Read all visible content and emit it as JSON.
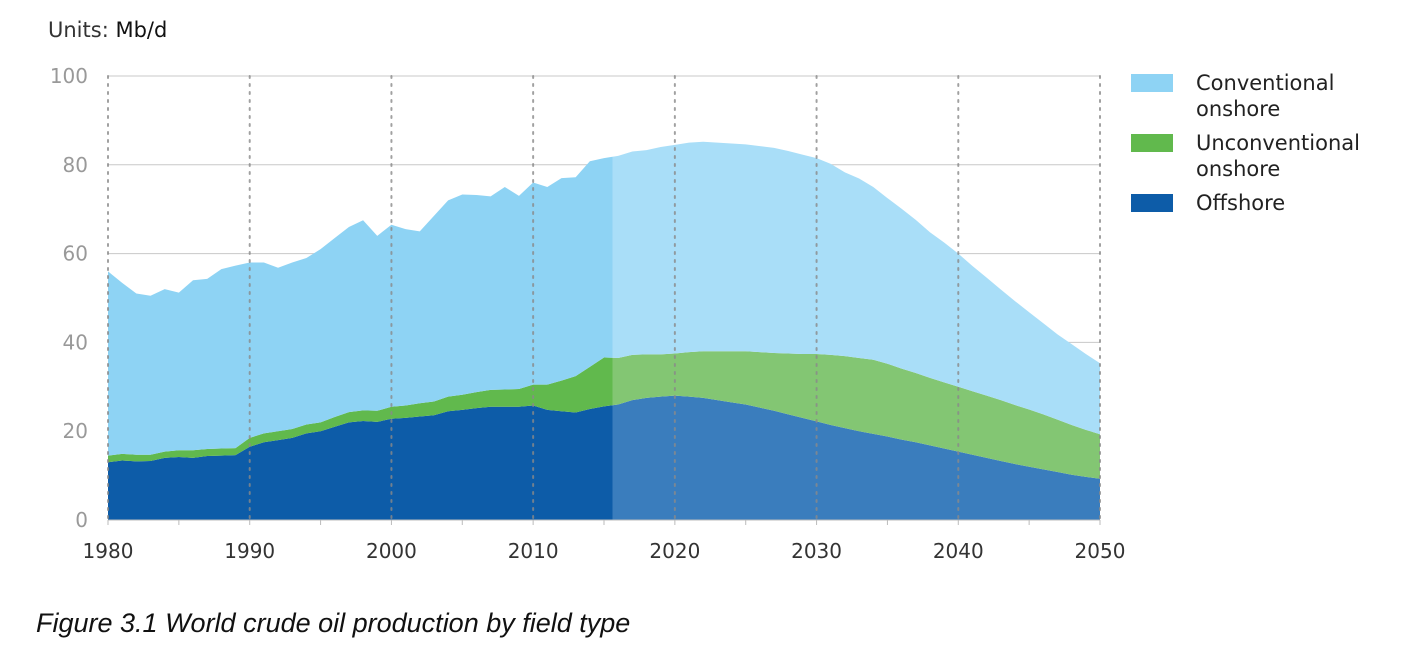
{
  "units_label": "Units:",
  "units_value": "Mb/d",
  "caption": "Figure 3.1 World crude oil production by field type",
  "colors": {
    "conventional": "#8ed3f4",
    "conventional_projected": "#a9def8",
    "unconventional": "#61b94d",
    "unconventional_projected": "#83c673",
    "offshore": "#0d5ca8",
    "offshore_projected": "#3a7dbd",
    "grid": "#c8c8c8",
    "axis_text": "#999999"
  },
  "chart_data": {
    "type": "area",
    "stacked": true,
    "title": "",
    "xlabel": "",
    "ylabel": "",
    "xlim": [
      1980,
      2050
    ],
    "ylim": [
      0,
      100
    ],
    "x_ticks": [
      1980,
      1990,
      2000,
      2010,
      2020,
      2030,
      2040,
      2050
    ],
    "y_ticks": [
      0,
      20,
      40,
      60,
      80,
      100
    ],
    "legend_position": "right",
    "projection_start": 2015.6,
    "x": [
      1980,
      1981,
      1982,
      1983,
      1984,
      1985,
      1986,
      1987,
      1988,
      1989,
      1990,
      1991,
      1992,
      1993,
      1994,
      1995,
      1996,
      1997,
      1998,
      1999,
      2000,
      2001,
      2002,
      2003,
      2004,
      2005,
      2006,
      2007,
      2008,
      2009,
      2010,
      2011,
      2012,
      2013,
      2014,
      2015,
      2016,
      2017,
      2018,
      2019,
      2020,
      2021,
      2022,
      2023,
      2024,
      2025,
      2026,
      2027,
      2028,
      2029,
      2030,
      2031,
      2032,
      2033,
      2034,
      2035,
      2036,
      2037,
      2038,
      2039,
      2040,
      2041,
      2042,
      2043,
      2044,
      2045,
      2046,
      2047,
      2048,
      2049,
      2050
    ],
    "series": [
      {
        "name": "Offshore",
        "key": "offshore",
        "values": [
          13,
          13.4,
          13.2,
          13.3,
          14,
          14.2,
          14,
          14.4,
          14.5,
          14.6,
          16.5,
          17.5,
          18,
          18.5,
          19.5,
          20,
          21,
          22,
          22.3,
          22.1,
          22.8,
          23,
          23.3,
          23.6,
          24.5,
          24.8,
          25.2,
          25.5,
          25.5,
          25.5,
          25.8,
          24.8,
          24.5,
          24.2,
          25,
          25.6,
          26,
          27,
          27.5,
          27.8,
          28,
          27.8,
          27.5,
          27,
          26.5,
          26,
          25.3,
          24.6,
          23.8,
          23,
          22.2,
          21.4,
          20.7,
          20,
          19.4,
          18.8,
          18.1,
          17.5,
          16.8,
          16.1,
          15.4,
          14.7,
          14,
          13.3,
          12.6,
          12,
          11.4,
          10.8,
          10.2,
          9.7,
          9.3
        ]
      },
      {
        "name": "Unconventional onshore",
        "key": "unconventional",
        "values": [
          1.5,
          1.5,
          1.5,
          1.4,
          1.4,
          1.5,
          1.7,
          1.6,
          1.6,
          1.6,
          2,
          2,
          2,
          2,
          2,
          2,
          2.2,
          2.3,
          2.4,
          2.5,
          2.7,
          2.8,
          3,
          3.1,
          3.3,
          3.4,
          3.6,
          3.8,
          3.9,
          4,
          4.7,
          5.7,
          6.9,
          8.2,
          9.5,
          11,
          10.5,
          10.2,
          9.8,
          9.5,
          9.5,
          10,
          10.5,
          11,
          11.5,
          12,
          12.5,
          13,
          13.7,
          14.4,
          15.2,
          15.8,
          16.2,
          16.5,
          16.7,
          16.4,
          16,
          15.6,
          15.2,
          14.9,
          14.6,
          14.3,
          14,
          13.7,
          13.3,
          12.9,
          12.4,
          11.8,
          11.2,
          10.6,
          10
        ]
      },
      {
        "name": "Conventional onshore",
        "key": "conventional",
        "values": [
          41.5,
          38.5,
          36.3,
          35.8,
          36.6,
          35.5,
          38.3,
          38.3,
          40.4,
          41.1,
          39.5,
          38.5,
          36.8,
          37.5,
          37.5,
          39,
          40.3,
          41.7,
          42.8,
          39.4,
          41,
          39.7,
          38.7,
          41.8,
          44.2,
          45.1,
          44.4,
          43.6,
          45.6,
          43.5,
          45.5,
          44.5,
          45.6,
          44.8,
          46.3,
          44.9,
          45.5,
          45.8,
          46,
          46.7,
          47,
          47.2,
          47.2,
          47,
          46.8,
          46.6,
          46.4,
          46.2,
          45.6,
          44.9,
          44.1,
          43,
          41.4,
          40.4,
          38.9,
          37.3,
          36,
          34.5,
          32.8,
          31.5,
          30,
          28.2,
          26.6,
          24.9,
          23.4,
          21.9,
          20.5,
          19.2,
          18.2,
          17.1,
          16
        ]
      }
    ]
  }
}
